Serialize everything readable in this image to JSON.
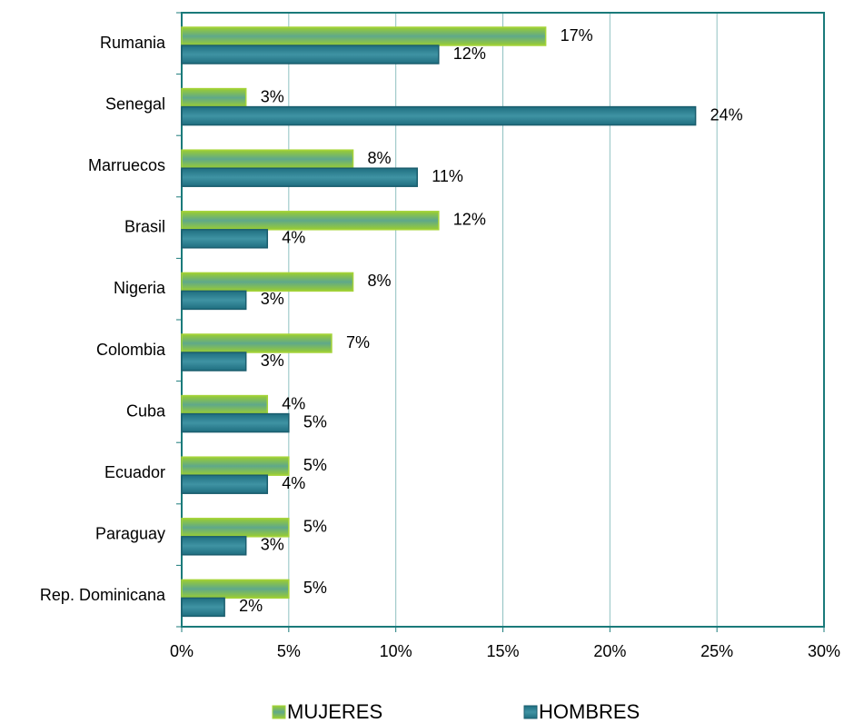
{
  "chart_data": {
    "type": "bar",
    "orientation": "horizontal",
    "categories": [
      "Rumania",
      "Senegal",
      "Marruecos",
      "Brasil",
      "Nigeria",
      "Colombia",
      "Cuba",
      "Ecuador",
      "Paraguay",
      "Rep. Dominicana"
    ],
    "series": [
      {
        "name": "MUJERES",
        "color": "#9acd32",
        "values": [
          17,
          3,
          8,
          12,
          8,
          7,
          4,
          5,
          5,
          5
        ],
        "value_labels": [
          "17%",
          "3%",
          "8%",
          "12%",
          "8%",
          "7%",
          "4%",
          "5%",
          "5%",
          "5%"
        ]
      },
      {
        "name": "HOMBRES",
        "color": "#1f6e80",
        "values": [
          12,
          24,
          11,
          4,
          3,
          3,
          5,
          4,
          3,
          2
        ],
        "value_labels": [
          "12%",
          "24%",
          "11%",
          "4%",
          "3%",
          "3%",
          "5%",
          "4%",
          "3%",
          "2%"
        ]
      }
    ],
    "xlim": [
      0,
      30
    ],
    "xticks": [
      {
        "value": 0,
        "label": "0%"
      },
      {
        "value": 5,
        "label": "5%"
      },
      {
        "value": 10,
        "label": "10%"
      },
      {
        "value": 15,
        "label": "15%"
      },
      {
        "value": 20,
        "label": "20%"
      },
      {
        "value": 25,
        "label": "25%"
      },
      {
        "value": 30,
        "label": "30%"
      }
    ],
    "grid": true,
    "legend": "bottom"
  }
}
